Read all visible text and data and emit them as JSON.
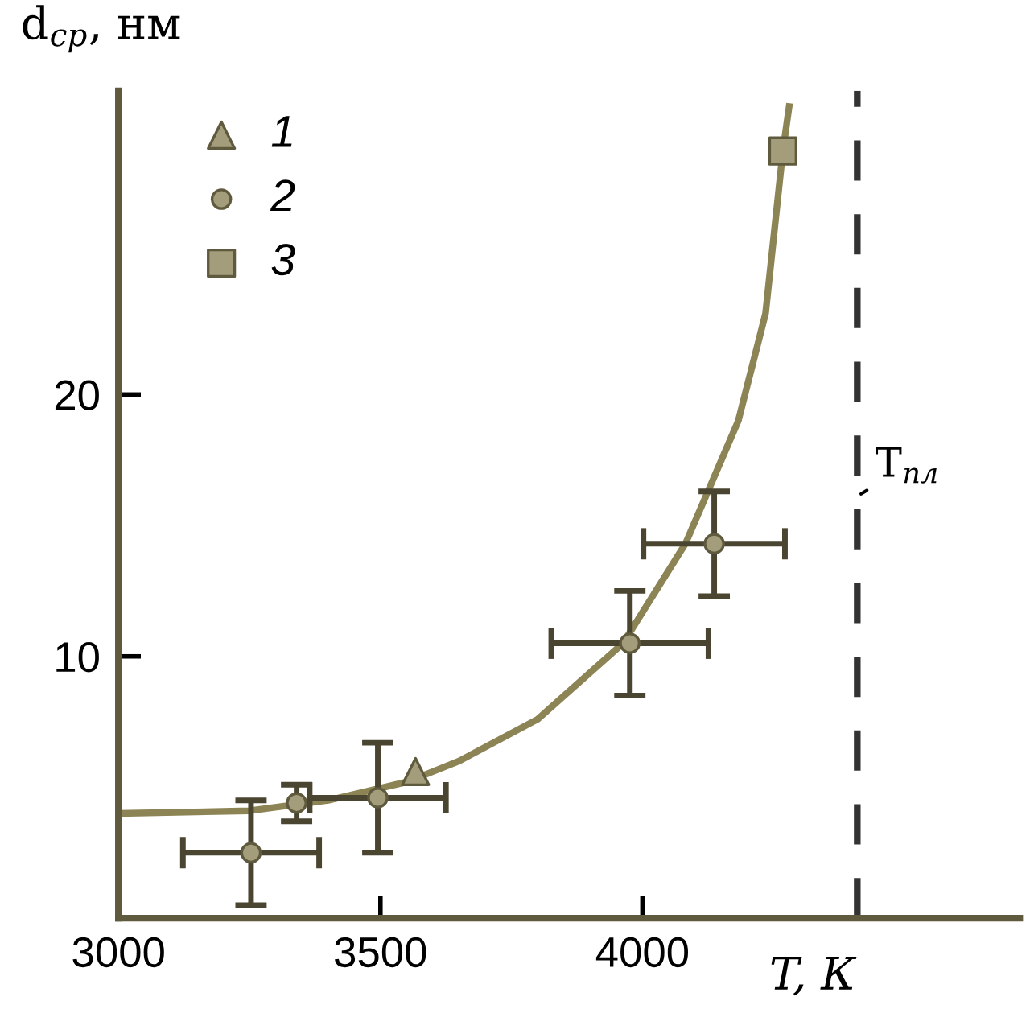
{
  "chart_data": {
    "type": "scatter",
    "xlabel": "T, К",
    "ylabel": "d$_{ср}$, нм",
    "xlim": [
      3000,
      4720
    ],
    "ylim": [
      0,
      31.6
    ],
    "xticks": [
      3000,
      3500,
      4000
    ],
    "yticks": [
      10,
      20
    ],
    "grid": false,
    "legend": "top left",
    "series": [
      {
        "type": "line",
        "color": "#8c8455",
        "line_style": "solid",
        "marker": "none",
        "x": [
          3000,
          3250,
          3400,
          3550,
          3650,
          3800,
          3963,
          4082,
          4183,
          4235,
          4268,
          4280
        ],
        "values": [
          4.0,
          4.1,
          4.5,
          5.2,
          6.0,
          7.6,
          10.5,
          14.3,
          19.0,
          23.1,
          29.3,
          31.0
        ]
      },
      {
        "name": "1",
        "marker": "triangle",
        "color": "#a39d7c",
        "x": [
          3567
        ],
        "values": [
          5.6
        ]
      },
      {
        "name": "2",
        "marker": "circle",
        "color": "#a39d7c",
        "x": [
          3253,
          3340,
          3495,
          3976,
          4137
        ],
        "values": [
          2.5,
          4.4,
          4.6,
          10.5,
          14.3
        ],
        "errors": [
          2.0,
          0.7,
          2.1,
          2.0,
          2.0
        ],
        "xerrors": [
          130,
          null,
          130,
          150,
          135
        ]
      },
      {
        "name": "3",
        "marker": "square",
        "color": "#a39d7c",
        "x": [
          4268
        ],
        "values": [
          29.3
        ]
      }
    ],
    "ref_lines": [
      {
        "axis": "x",
        "value": 4410,
        "label": "T$_{пл}$",
        "color": "#333333",
        "line_style": "dashed"
      }
    ]
  }
}
